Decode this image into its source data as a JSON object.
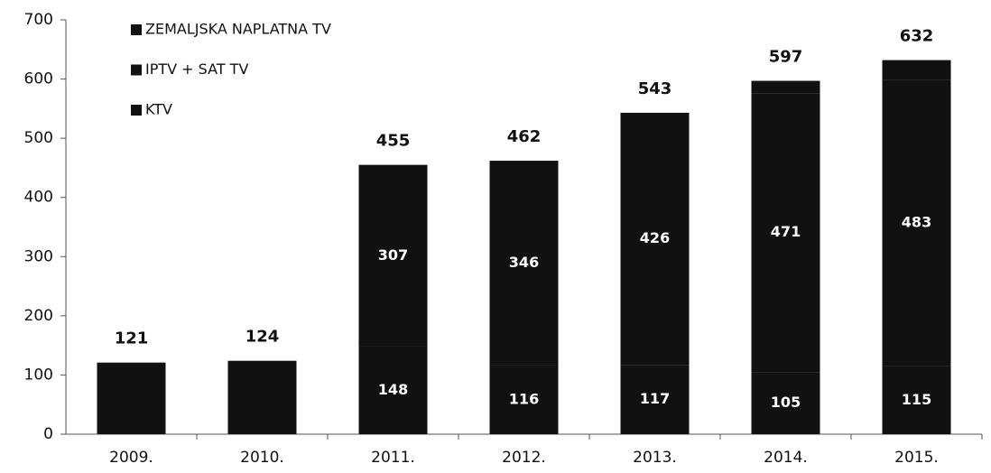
{
  "chart_data": {
    "type": "stacked_bar",
    "categories": [
      "2009.",
      "2010.",
      "2011.",
      "2012.",
      "2013.",
      "2014.",
      "2015."
    ],
    "series": [
      {
        "name": "KTV",
        "color": "#111111",
        "values": [
          121,
          124,
          148,
          116,
          117,
          105,
          115
        ],
        "value_labels": [
          null,
          null,
          "148",
          "116",
          "117",
          "105",
          "115"
        ]
      },
      {
        "name": "IPTV + SAT TV",
        "color": "#111111",
        "values": [
          0,
          0,
          307,
          346,
          426,
          471,
          483
        ],
        "value_labels": [
          null,
          null,
          "307",
          "346",
          "426",
          "471",
          "483"
        ]
      },
      {
        "name": "ZEMALJSKA NAPLATNA TV",
        "color": "#111111",
        "values": [
          0,
          0,
          0,
          0,
          0,
          21,
          34
        ]
      }
    ],
    "totals": [
      121,
      124,
      455,
      462,
      543,
      597,
      632
    ],
    "ylim": [
      0,
      700
    ],
    "yticks": [
      0,
      100,
      200,
      300,
      400,
      500,
      600,
      700
    ],
    "legend": "top-left"
  }
}
